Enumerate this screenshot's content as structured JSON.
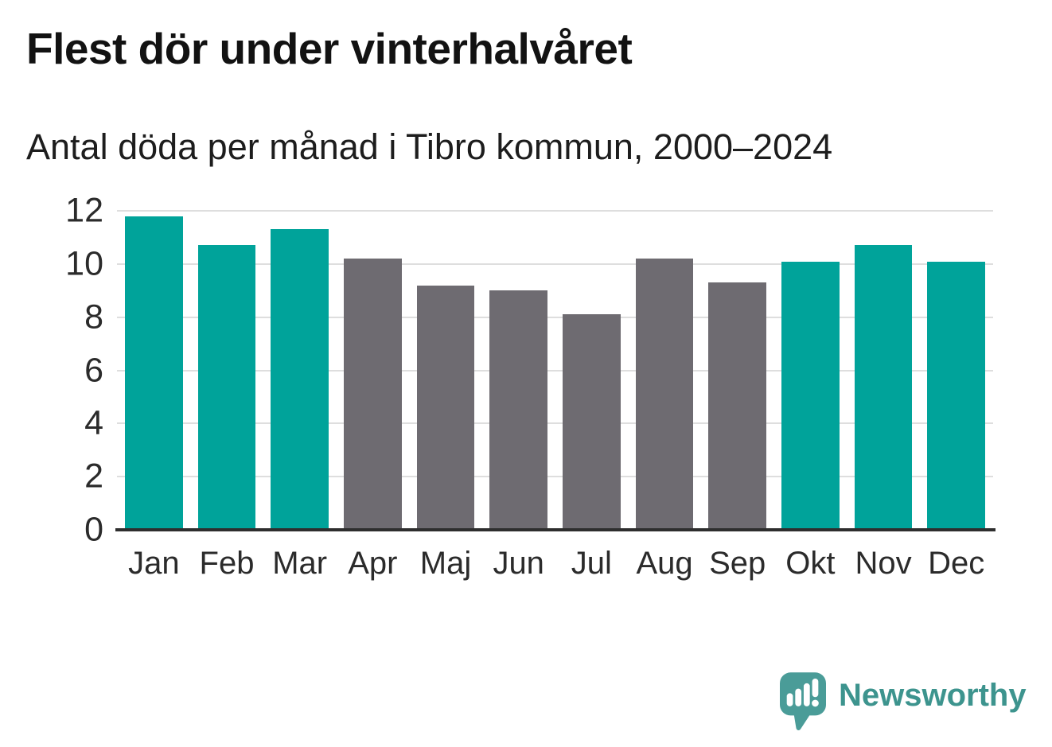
{
  "header": {
    "title": "Flest dör under vinterhalvåret",
    "subtitle": "Antal döda per månad i Tibro kommun, 2000–2024"
  },
  "chart_data": {
    "type": "bar",
    "title": "Flest dör under vinterhalvåret",
    "subtitle": "Antal döda per månad i Tibro kommun, 2000–2024",
    "categories": [
      "Jan",
      "Feb",
      "Mar",
      "Apr",
      "Maj",
      "Jun",
      "Jul",
      "Aug",
      "Sep",
      "Okt",
      "Nov",
      "Dec"
    ],
    "values": [
      11.8,
      10.7,
      11.3,
      10.2,
      9.2,
      9.0,
      8.1,
      10.2,
      9.3,
      10.1,
      10.7,
      10.1
    ],
    "bar_colors": [
      "teal",
      "teal",
      "teal",
      "gray",
      "gray",
      "gray",
      "gray",
      "gray",
      "gray",
      "teal",
      "teal",
      "teal"
    ],
    "colors": {
      "teal": "#00a39a",
      "gray": "#6e6b71"
    },
    "xlabel": "",
    "ylabel": "",
    "ylim": [
      0,
      12
    ],
    "yticks": [
      0,
      2,
      4,
      6,
      8,
      10,
      12
    ],
    "grid": true,
    "gridline_color": "#dedede",
    "axis_line_color": "#2e2e2e",
    "legend_position": "none"
  },
  "brand": {
    "name": "Newsworthy",
    "logo_icon": "speech-bubble-bar-chart-exclamation",
    "logo_color": "#4a9c98",
    "text_color": "#3d948e"
  }
}
